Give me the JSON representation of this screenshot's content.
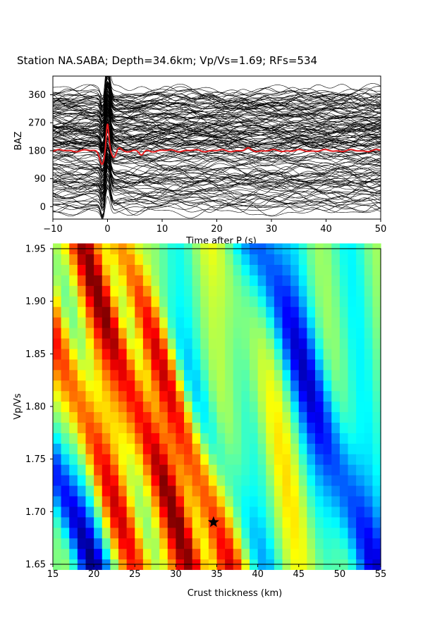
{
  "title": "Station NA.SABA; Depth=34.6km; Vp/Vs=1.69; RFs=534",
  "colors": {
    "mean_trace": "#e31a1c",
    "traces": "#000000",
    "best_marker": "#000000"
  },
  "chart_data": [
    {
      "type": "line",
      "description_role": "receiver-function traces sorted by back-azimuth",
      "xlabel": "Time after P (s)",
      "ylabel": "BAZ",
      "xlim": [
        -10,
        50
      ],
      "ylim": [
        -40,
        420
      ],
      "xticks": [
        -10,
        0,
        10,
        20,
        30,
        40,
        50
      ],
      "yticks": [
        0,
        90,
        180,
        270,
        360
      ],
      "trace_count_shown": 534,
      "traces_baz_range": [
        -20,
        380
      ],
      "mean_trace": {
        "baseline_baz": 180,
        "peaks": [
          {
            "t": 0.0,
            "baz": 268
          },
          {
            "t": -1.0,
            "baz": 140
          },
          {
            "t": 1.2,
            "baz": 156
          },
          {
            "t": 2.0,
            "baz": 190
          },
          {
            "t": 6.2,
            "baz": 165
          },
          {
            "t": 25.8,
            "baz": 186
          }
        ]
      }
    },
    {
      "type": "heatmap",
      "xlabel": "Crust thickness (km)",
      "ylabel": "Vp/Vs",
      "xlim": [
        15,
        55
      ],
      "ylim": [
        1.65,
        1.95
      ],
      "xticks": [
        15,
        20,
        25,
        30,
        35,
        40,
        45,
        50,
        55
      ],
      "yticks": [
        1.65,
        1.7,
        1.75,
        1.8,
        1.85,
        1.9,
        1.95
      ],
      "ytick_labels": [
        "1.65",
        "1.70",
        "1.75",
        "1.80",
        "1.85",
        "1.90",
        "1.95"
      ],
      "colormap": "jet",
      "grid_size": [
        40,
        31
      ],
      "best_fit": {
        "thickness_km": 34.6,
        "vpvs": 1.69
      }
    }
  ]
}
